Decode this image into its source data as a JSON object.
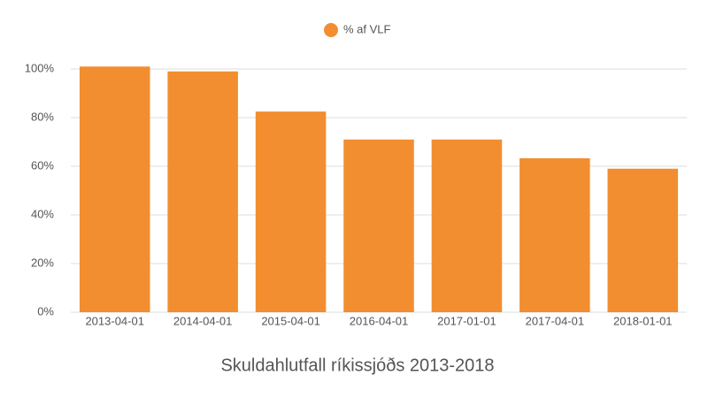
{
  "chart_data": {
    "type": "bar",
    "title": "Skuldahlutfall ríkissjóðs 2013-2018",
    "categories": [
      "2013-04-01",
      "2014-04-01",
      "2015-04-01",
      "2016-04-01",
      "2017-01-01",
      "2017-04-01",
      "2018-01-01"
    ],
    "series": [
      {
        "name": "% af VLF",
        "color": "#f28e2f",
        "values": [
          101,
          99,
          82.5,
          71,
          71,
          63.3,
          59
        ]
      }
    ],
    "ylim": [
      0,
      102
    ],
    "yticks": [
      {
        "value": 0,
        "label": "0%"
      },
      {
        "value": 20,
        "label": "20%"
      },
      {
        "value": 40,
        "label": "40%"
      },
      {
        "value": 60,
        "label": "60%"
      },
      {
        "value": 80,
        "label": "80%"
      },
      {
        "value": 100,
        "label": "100%"
      }
    ],
    "grid": true,
    "legend": "top"
  }
}
